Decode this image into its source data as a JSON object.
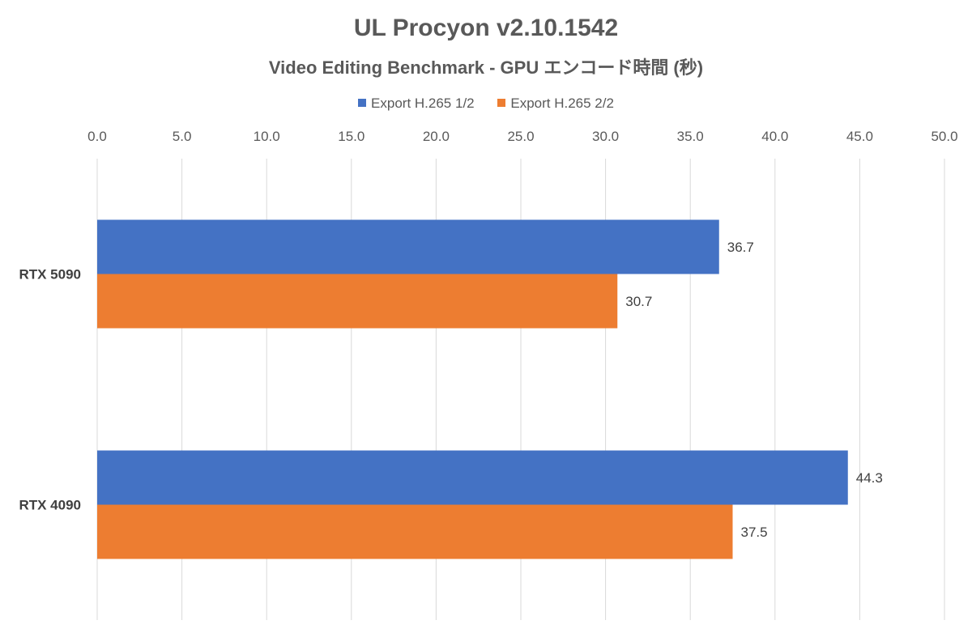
{
  "chart_data": {
    "type": "bar",
    "orientation": "horizontal",
    "title": "UL Procyon v2.10.1542",
    "subtitle": "Video Editing Benchmark - GPU エンコード時間 (秒)",
    "categories": [
      "RTX 5090",
      "RTX 4090"
    ],
    "series": [
      {
        "name": "Export H.265 1/2",
        "color": "#4472C4",
        "values": [
          36.7,
          44.3
        ],
        "labels": [
          "36.7",
          "44.3"
        ]
      },
      {
        "name": "Export H.265 2/2",
        "color": "#ED7D31",
        "values": [
          30.7,
          37.5
        ],
        "labels": [
          "30.7",
          "37.5"
        ]
      }
    ],
    "xlim": [
      0,
      50
    ],
    "xticks": [
      "0.0",
      "5.0",
      "10.0",
      "15.0",
      "20.0",
      "25.0",
      "30.0",
      "35.0",
      "40.0",
      "45.0",
      "50.0"
    ],
    "xtick_values": [
      0,
      5,
      10,
      15,
      20,
      25,
      30,
      35,
      40,
      45,
      50
    ],
    "x_axis_position": "top",
    "grid": true,
    "legend": "top"
  }
}
